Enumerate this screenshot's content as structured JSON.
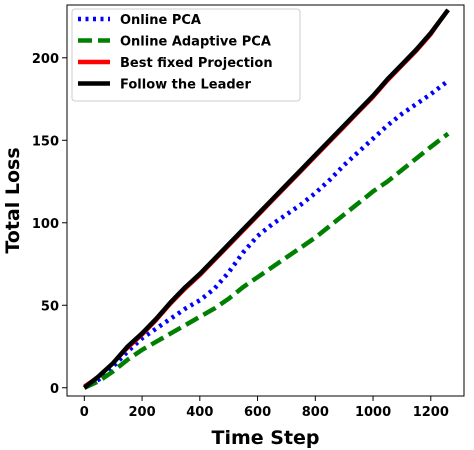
{
  "chart_data": {
    "type": "line",
    "title": "",
    "xlabel": "Time Step",
    "ylabel": "Total Loss",
    "xlim": [
      -60,
      1315
    ],
    "ylim": [
      -5,
      232
    ],
    "xticks": [
      0,
      200,
      400,
      600,
      800,
      1000,
      1200
    ],
    "yticks": [
      0,
      50,
      100,
      150,
      200
    ],
    "grid": false,
    "legend_position": "top-left",
    "series": [
      {
        "name": "Online PCA",
        "color": "#0000ff",
        "style": "dotted",
        "x": [
          0,
          50,
          100,
          150,
          200,
          250,
          300,
          350,
          400,
          450,
          500,
          550,
          600,
          650,
          700,
          750,
          800,
          850,
          900,
          950,
          1000,
          1050,
          1100,
          1150,
          1200,
          1260
        ],
        "y": [
          0,
          5,
          13,
          22,
          30,
          36,
          42,
          48,
          53,
          60,
          70,
          82,
          92,
          99,
          105,
          111,
          118,
          126,
          135,
          143,
          151,
          159,
          166,
          172,
          178,
          186
        ]
      },
      {
        "name": "Online Adaptive PCA",
        "color": "#008000",
        "style": "dashed",
        "x": [
          0,
          50,
          100,
          150,
          200,
          250,
          300,
          350,
          400,
          450,
          500,
          550,
          600,
          650,
          700,
          750,
          800,
          850,
          900,
          950,
          1000,
          1050,
          1100,
          1150,
          1200,
          1260
        ],
        "y": [
          0,
          4,
          10,
          17,
          23,
          28,
          33,
          38,
          43,
          48,
          54,
          61,
          67,
          73,
          79,
          85,
          91,
          98,
          105,
          112,
          119,
          125,
          132,
          139,
          146,
          154
        ]
      },
      {
        "name": "Best fixed Projection",
        "color": "#ff0000",
        "style": "solid",
        "x": [
          0,
          50,
          100,
          150,
          200,
          250,
          300,
          350,
          400,
          450,
          500,
          550,
          600,
          650,
          700,
          750,
          800,
          850,
          900,
          950,
          1000,
          1050,
          1100,
          1150,
          1200,
          1260
        ],
        "y": [
          1,
          7,
          15,
          24,
          32,
          41,
          51,
          60,
          68,
          77,
          86,
          95,
          104,
          113,
          122,
          131,
          140,
          149,
          158,
          167,
          176,
          186,
          195,
          204,
          214,
          229
        ]
      },
      {
        "name": "Follow the Leader",
        "color": "#000000",
        "style": "solid",
        "x": [
          0,
          50,
          100,
          150,
          200,
          250,
          300,
          350,
          400,
          450,
          500,
          550,
          600,
          650,
          700,
          750,
          800,
          850,
          900,
          950,
          1000,
          1050,
          1100,
          1150,
          1200,
          1260
        ],
        "y": [
          0,
          7,
          15,
          25,
          33,
          42,
          52,
          61,
          69,
          78,
          87,
          96,
          105,
          114,
          123,
          132,
          141,
          150,
          159,
          168,
          177,
          187,
          196,
          205,
          215,
          229
        ]
      }
    ]
  }
}
